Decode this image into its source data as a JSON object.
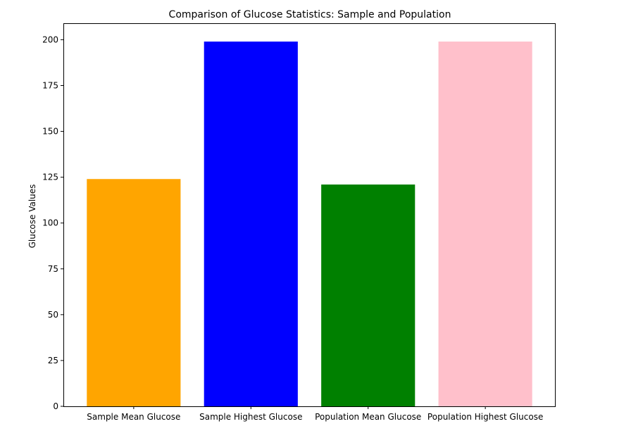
{
  "chart_data": {
    "type": "bar",
    "title": "Comparison of Glucose Statistics: Sample and Population",
    "xlabel": "",
    "ylabel": "Glucose Values",
    "categories": [
      "Sample Mean Glucose",
      "Sample Highest Glucose",
      "Population Mean Glucose",
      "Population Highest Glucose"
    ],
    "values": [
      124,
      199,
      121,
      199
    ],
    "colors": [
      "#ffa500",
      "#0000ff",
      "#008000",
      "#ffc0cb"
    ],
    "ylim": [
      0,
      209
    ],
    "yticks": [
      0,
      25,
      50,
      75,
      100,
      125,
      150,
      175,
      200
    ],
    "grid": false,
    "legend": "none"
  }
}
